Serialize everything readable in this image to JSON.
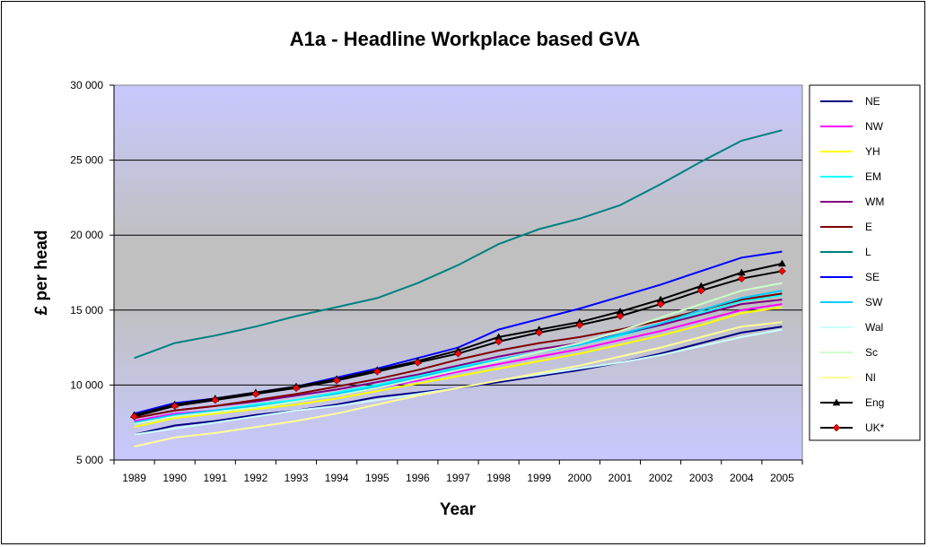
{
  "chart_data": {
    "type": "line",
    "title": "A1a - Headline Workplace based GVA",
    "xlabel": "Year",
    "ylabel": "£ per head",
    "ylim": [
      5000,
      30000
    ],
    "yticks": [
      5000,
      10000,
      15000,
      20000,
      25000,
      30000
    ],
    "ytick_labels": [
      "5 000",
      "10 000",
      "15 000",
      "20 000",
      "25 000",
      "30 000"
    ],
    "categories": [
      "1989",
      "1990",
      "1991",
      "1992",
      "1993",
      "1994",
      "1995",
      "1996",
      "1997",
      "1998",
      "1999",
      "2000",
      "2001",
      "2002",
      "2003",
      "2004",
      "2005"
    ],
    "grid": "horizontal major",
    "legend_position": "right",
    "plot_background": "gradient lavender to gray",
    "series": [
      {
        "name": "NE",
        "color": "#000080",
        "marker": "none",
        "values": [
          6700,
          7300,
          7600,
          8000,
          8300,
          8700,
          9200,
          9500,
          9800,
          10200,
          10600,
          11000,
          11500,
          12100,
          12800,
          13500,
          13900
        ]
      },
      {
        "name": "NW",
        "color": "#ff00ff",
        "marker": "none",
        "values": [
          7600,
          8100,
          8300,
          8600,
          8900,
          9300,
          9800,
          10300,
          10900,
          11400,
          11900,
          12400,
          13000,
          13600,
          14300,
          15000,
          15400
        ]
      },
      {
        "name": "YH",
        "color": "#ffff00",
        "marker": "none",
        "values": [
          7200,
          7800,
          8100,
          8400,
          8700,
          9100,
          9600,
          10100,
          10600,
          11100,
          11600,
          12100,
          12700,
          13300,
          14000,
          14800,
          15200
        ]
      },
      {
        "name": "EM",
        "color": "#00ffff",
        "marker": "none",
        "values": [
          7500,
          8000,
          8300,
          8700,
          9000,
          9500,
          10000,
          10600,
          11200,
          11700,
          12200,
          12700,
          13300,
          14000,
          14800,
          15600,
          16000
        ]
      },
      {
        "name": "WM",
        "color": "#800080",
        "marker": "none",
        "values": [
          7800,
          8300,
          8600,
          8900,
          9300,
          9700,
          10200,
          10700,
          11300,
          11900,
          12400,
          12800,
          13400,
          14000,
          14700,
          15400,
          15700
        ]
      },
      {
        "name": "E",
        "color": "#800000",
        "marker": "none",
        "values": [
          7800,
          8300,
          8600,
          9000,
          9400,
          9900,
          10400,
          11000,
          11700,
          12300,
          12800,
          13200,
          13700,
          14300,
          15000,
          15700,
          16100
        ]
      },
      {
        "name": "L",
        "color": "#008080",
        "marker": "none",
        "values": [
          11800,
          12800,
          13300,
          13900,
          14600,
          15200,
          15800,
          16800,
          18000,
          19400,
          20400,
          21100,
          22000,
          23400,
          24900,
          26300,
          27000
        ]
      },
      {
        "name": "SE",
        "color": "#0000ff",
        "marker": "none",
        "values": [
          8100,
          8800,
          9100,
          9500,
          9900,
          10500,
          11100,
          11800,
          12500,
          13700,
          14400,
          15100,
          15900,
          16700,
          17600,
          18500,
          18900
        ]
      },
      {
        "name": "SW",
        "color": "#00ccff",
        "marker": "none",
        "values": [
          7500,
          8000,
          8300,
          8600,
          8900,
          9400,
          9900,
          10500,
          11100,
          11700,
          12200,
          12700,
          13400,
          14100,
          15000,
          15800,
          16300
        ]
      },
      {
        "name": "Wal",
        "color": "#ccffff",
        "marker": "none",
        "values": [
          6700,
          7100,
          7500,
          7900,
          8300,
          8600,
          9000,
          9400,
          9800,
          10300,
          10700,
          11100,
          11500,
          12000,
          12600,
          13200,
          13700
        ]
      },
      {
        "name": "Sc",
        "color": "#ccffcc",
        "marker": "none",
        "values": [
          7400,
          7900,
          8200,
          8500,
          8900,
          9300,
          9800,
          10400,
          11000,
          11600,
          12200,
          12800,
          13600,
          14500,
          15400,
          16300,
          16800
        ]
      },
      {
        "name": "NI",
        "color": "#ffff99",
        "marker": "none",
        "values": [
          5900,
          6500,
          6800,
          7200,
          7600,
          8100,
          8700,
          9300,
          9800,
          10300,
          10800,
          11300,
          11900,
          12500,
          13200,
          13900,
          14200
        ]
      },
      {
        "name": "Eng",
        "color": "#000000",
        "marker": "triangle",
        "values": [
          8000,
          8700,
          9100,
          9500,
          9900,
          10400,
          11000,
          11600,
          12300,
          13200,
          13700,
          14200,
          14900,
          15700,
          16600,
          17500,
          18100
        ]
      },
      {
        "name": "UK*",
        "color": "#000000",
        "marker": "diamond",
        "marker_color": "#ff0000",
        "values": [
          7900,
          8600,
          9000,
          9400,
          9800,
          10300,
          10900,
          11500,
          12100,
          12900,
          13500,
          14000,
          14600,
          15400,
          16300,
          17100,
          17600
        ]
      }
    ]
  }
}
